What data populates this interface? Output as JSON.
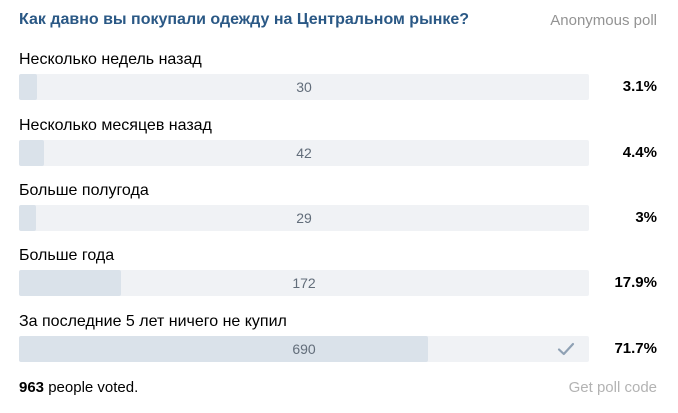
{
  "poll": {
    "question": "Как давно вы покупали одежду на Центральном рынке?",
    "type_label": "Anonymous poll",
    "options": [
      {
        "label": "Несколько недель назад",
        "count": "30",
        "percent": "3.1%",
        "fraction": 0.031,
        "checked": false
      },
      {
        "label": "Несколько месяцев назад",
        "count": "42",
        "percent": "4.4%",
        "fraction": 0.044,
        "checked": false
      },
      {
        "label": "Больше полугода",
        "count": "29",
        "percent": "3%",
        "fraction": 0.03,
        "checked": false
      },
      {
        "label": "Больше года",
        "count": "172",
        "percent": "17.9%",
        "fraction": 0.179,
        "checked": false
      },
      {
        "label": "За последние 5 лет ничего не купил",
        "count": "690",
        "percent": "71.7%",
        "fraction": 0.717,
        "checked": true
      }
    ],
    "votes_count": "963",
    "votes_suffix": " people voted.",
    "get_code_label": "Get poll code"
  },
  "colors": {
    "question": "#2a5885",
    "bar_track": "#f0f2f5",
    "bar_fill": "#dae2ea",
    "count_text": "#626d7a",
    "muted_text": "#939393",
    "check": "#8fa1b4"
  },
  "icons": {
    "checked_option": "checkmark-icon"
  }
}
